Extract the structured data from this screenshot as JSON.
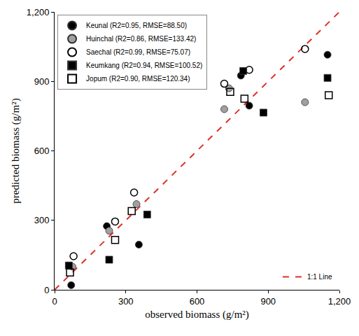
{
  "chart_data": {
    "type": "scatter",
    "x_label": "observed biomass (g/m²)",
    "y_label": "predicted biomass (g/m²)",
    "xlim": [
      0,
      1200
    ],
    "ylim": [
      0,
      1200
    ],
    "xticks": [
      0,
      300,
      600,
      900,
      {
        "value": 1200,
        "label": "1,200"
      }
    ],
    "yticks": [
      0,
      300,
      600,
      900,
      {
        "value": 1200,
        "label": "1,200"
      }
    ],
    "grid": false,
    "legend": "upper left",
    "series": [
      {
        "name": "Keunal (R2=0.95, RMSE=88.50)",
        "color": "#000000",
        "marker": "circle",
        "x": [
          70,
          220,
          355,
          785,
          820,
          1150
        ],
        "values": [
          20,
          275,
          195,
          925,
          795,
          1015
        ]
      },
      {
        "name": "Huinchal (R2=0.86, RMSE=133.42)",
        "color": "#a0a0a0",
        "marker": "circle",
        "x": [
          75,
          230,
          345,
          715,
          735,
          1055
        ],
        "values": [
          100,
          255,
          370,
          780,
          870,
          810
        ]
      },
      {
        "name": "Saechal (R2=0.99, RMSE=75.07)",
        "color": "#000000",
        "marker": "circle-open",
        "x": [
          80,
          255,
          335,
          715,
          820,
          1055
        ],
        "values": [
          145,
          295,
          420,
          890,
          950,
          1040
        ]
      },
      {
        "name": "Keumkang (R2=0.94, RMSE=100.52)",
        "color": "#000000",
        "marker": "square",
        "x": [
          60,
          230,
          390,
          795,
          880,
          1150
        ],
        "values": [
          105,
          130,
          325,
          945,
          765,
          915
        ]
      },
      {
        "name": "Jopum (R2=0.90, RMSE=120.34)",
        "color": "#000000",
        "marker": "square-open",
        "x": [
          65,
          255,
          325,
          740,
          800,
          1155
        ],
        "values": [
          75,
          215,
          340,
          855,
          825,
          840
        ]
      },
      {
        "name": "1:1 Line",
        "type": "line",
        "color": "#e0302a",
        "line_style": "dash",
        "x": [
          0,
          1200
        ],
        "values": [
          0,
          1200
        ]
      }
    ]
  }
}
